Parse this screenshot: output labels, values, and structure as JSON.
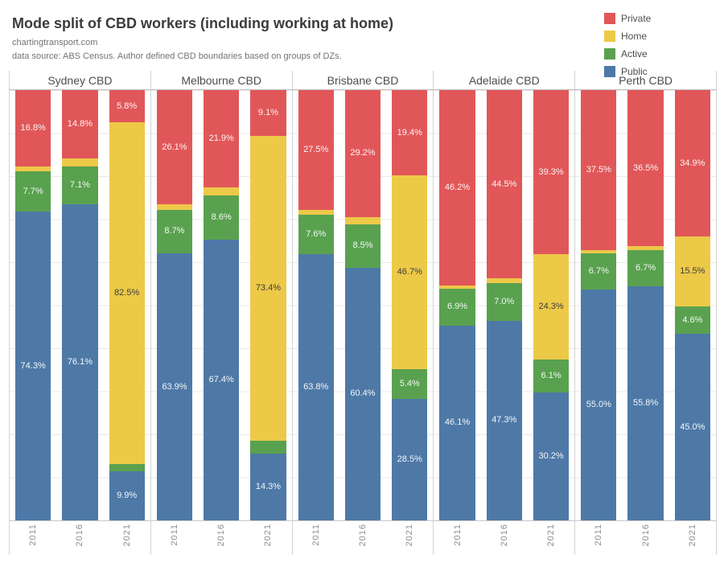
{
  "header": {
    "title": "Mode split of CBD workers (including working at home)",
    "website": "chartingtransport.com",
    "note": "data source: ABS Census. Author defined CBD boundaries based on groups of DZs."
  },
  "legend": [
    {
      "label": "Private",
      "color": "#E15759"
    },
    {
      "label": "Home",
      "color": "#EDC948"
    },
    {
      "label": "Active",
      "color": "#59A14F"
    },
    {
      "label": "Public",
      "color": "#4E79A7"
    }
  ],
  "chart_data": {
    "type": "bar",
    "stacked": true,
    "unit": "percent",
    "value_axis_range": [
      0,
      100
    ],
    "gridlines": "horizontal, every 10%, no visible tick labels",
    "legend_position": "top-right",
    "stack_order_top_to_bottom": [
      "Private",
      "Home",
      "Active",
      "Public"
    ],
    "colors": {
      "Private": "#E15759",
      "Home": "#EDC948",
      "Active": "#59A14F",
      "Public": "#4E79A7"
    },
    "years": [
      "2011",
      "2016",
      "2021"
    ],
    "panels": [
      {
        "city": "Sydney CBD",
        "bars": [
          {
            "year": "2011",
            "segments": [
              {
                "series": "Private",
                "value": 16.8,
                "label": "16.8%"
              },
              {
                "series": "Home",
                "value": 1.2,
                "label": null
              },
              {
                "series": "Active",
                "value": 7.7,
                "label": "7.7%"
              },
              {
                "series": "Public",
                "value": 74.3,
                "label": "74.3%"
              }
            ]
          },
          {
            "year": "2016",
            "segments": [
              {
                "series": "Private",
                "value": 14.8,
                "label": "14.8%"
              },
              {
                "series": "Home",
                "value": 2.0,
                "label": null
              },
              {
                "series": "Active",
                "value": 7.1,
                "label": "7.1%"
              },
              {
                "series": "Public",
                "value": 76.1,
                "label": "76.1%"
              }
            ]
          },
          {
            "year": "2021",
            "segments": [
              {
                "series": "Private",
                "value": 5.8,
                "label": "5.8%"
              },
              {
                "series": "Home",
                "value": 82.5,
                "label": "82.5%"
              },
              {
                "series": "Active",
                "value": 1.8,
                "label": null
              },
              {
                "series": "Public",
                "value": 9.9,
                "label": "9.9%"
              }
            ]
          }
        ]
      },
      {
        "city": "Melbourne CBD",
        "bars": [
          {
            "year": "2011",
            "segments": [
              {
                "series": "Private",
                "value": 26.1,
                "label": "26.1%"
              },
              {
                "series": "Home",
                "value": 1.3,
                "label": null
              },
              {
                "series": "Active",
                "value": 8.7,
                "label": "8.7%"
              },
              {
                "series": "Public",
                "value": 63.9,
                "label": "63.9%"
              }
            ]
          },
          {
            "year": "2016",
            "segments": [
              {
                "series": "Private",
                "value": 21.9,
                "label": "21.9%"
              },
              {
                "series": "Home",
                "value": 2.1,
                "label": null
              },
              {
                "series": "Active",
                "value": 8.6,
                "label": "8.6%"
              },
              {
                "series": "Public",
                "value": 67.4,
                "label": "67.4%"
              }
            ]
          },
          {
            "year": "2021",
            "segments": [
              {
                "series": "Private",
                "value": 9.1,
                "label": "9.1%"
              },
              {
                "series": "Home",
                "value": 73.4,
                "label": "73.4%"
              },
              {
                "series": "Active",
                "value": 3.2,
                "label": null
              },
              {
                "series": "Public",
                "value": 14.3,
                "label": "14.3%"
              }
            ]
          }
        ]
      },
      {
        "city": "Brisbane CBD",
        "bars": [
          {
            "year": "2011",
            "segments": [
              {
                "series": "Private",
                "value": 27.5,
                "label": "27.5%"
              },
              {
                "series": "Home",
                "value": 1.1,
                "label": null
              },
              {
                "series": "Active",
                "value": 7.6,
                "label": "7.6%"
              },
              {
                "series": "Public",
                "value": 63.8,
                "label": "63.8%"
              }
            ]
          },
          {
            "year": "2016",
            "segments": [
              {
                "series": "Private",
                "value": 29.2,
                "label": "29.2%"
              },
              {
                "series": "Home",
                "value": 1.9,
                "label": null
              },
              {
                "series": "Active",
                "value": 8.5,
                "label": "8.5%"
              },
              {
                "series": "Public",
                "value": 60.4,
                "label": "60.4%"
              }
            ]
          },
          {
            "year": "2021",
            "segments": [
              {
                "series": "Private",
                "value": 19.4,
                "label": "19.4%"
              },
              {
                "series": "Home",
                "value": 46.7,
                "label": "46.7%"
              },
              {
                "series": "Active",
                "value": 5.4,
                "label": "5.4%"
              },
              {
                "series": "Public",
                "value": 28.5,
                "label": "28.5%"
              }
            ]
          }
        ]
      },
      {
        "city": "Adelaide CBD",
        "bars": [
          {
            "year": "2011",
            "segments": [
              {
                "series": "Private",
                "value": 46.2,
                "label": "46.2%"
              },
              {
                "series": "Home",
                "value": 0.8,
                "label": null
              },
              {
                "series": "Active",
                "value": 6.9,
                "label": "6.9%"
              },
              {
                "series": "Public",
                "value": 46.1,
                "label": "46.1%"
              }
            ]
          },
          {
            "year": "2016",
            "segments": [
              {
                "series": "Private",
                "value": 44.5,
                "label": "44.5%"
              },
              {
                "series": "Home",
                "value": 1.2,
                "label": null
              },
              {
                "series": "Active",
                "value": 7.0,
                "label": "7.0%"
              },
              {
                "series": "Public",
                "value": 47.3,
                "label": "47.3%"
              }
            ]
          },
          {
            "year": "2021",
            "segments": [
              {
                "series": "Private",
                "value": 39.3,
                "label": "39.3%"
              },
              {
                "series": "Home",
                "value": 24.3,
                "label": "24.3%"
              },
              {
                "series": "Active",
                "value": 6.1,
                "label": "6.1%"
              },
              {
                "series": "Public",
                "value": 30.2,
                "label": "30.2%"
              }
            ]
          }
        ]
      },
      {
        "city": "Perth CBD",
        "bars": [
          {
            "year": "2011",
            "segments": [
              {
                "series": "Private",
                "value": 37.5,
                "label": "37.5%"
              },
              {
                "series": "Home",
                "value": 0.8,
                "label": null
              },
              {
                "series": "Active",
                "value": 6.7,
                "label": "6.7%"
              },
              {
                "series": "Public",
                "value": 55.0,
                "label": "55.0%"
              }
            ]
          },
          {
            "year": "2016",
            "segments": [
              {
                "series": "Private",
                "value": 36.5,
                "label": "36.5%"
              },
              {
                "series": "Home",
                "value": 1.0,
                "label": null
              },
              {
                "series": "Active",
                "value": 6.7,
                "label": "6.7%"
              },
              {
                "series": "Public",
                "value": 55.8,
                "label": "55.8%"
              }
            ]
          },
          {
            "year": "2021",
            "segments": [
              {
                "series": "Private",
                "value": 34.9,
                "label": "34.9%"
              },
              {
                "series": "Home",
                "value": 15.5,
                "label": "15.5%"
              },
              {
                "series": "Active",
                "value": 4.6,
                "label": "4.6%"
              },
              {
                "series": "Public",
                "value": 45.0,
                "label": "45.0%"
              }
            ]
          }
        ]
      }
    ]
  }
}
